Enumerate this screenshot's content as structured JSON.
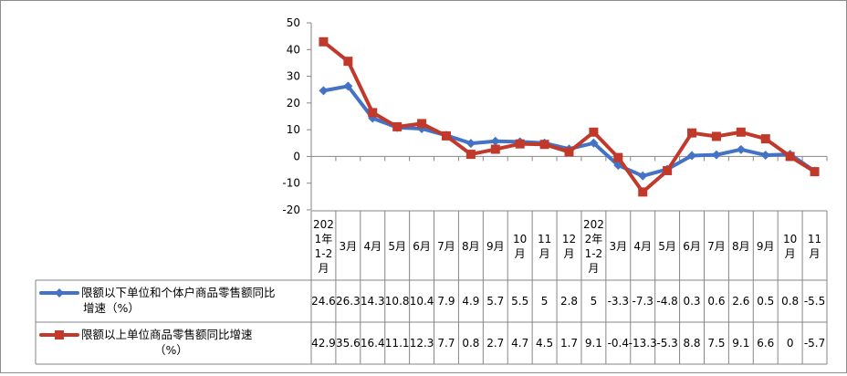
{
  "chart_data": {
    "type": "line",
    "categories": [
      "2021年1-2月",
      "3月",
      "4月",
      "5月",
      "6月",
      "7月",
      "8月",
      "9月",
      "10月",
      "11月",
      "12月",
      "2022年1-2月",
      "3月",
      "4月",
      "5月",
      "6月",
      "7月",
      "8月",
      "9月",
      "10月",
      "11月"
    ],
    "category_lines": [
      [
        "202",
        "1年",
        "1-2",
        "月"
      ],
      [
        "3月"
      ],
      [
        "4月"
      ],
      [
        "5月"
      ],
      [
        "6月"
      ],
      [
        "7月"
      ],
      [
        "8月"
      ],
      [
        "9月"
      ],
      [
        "10",
        "月"
      ],
      [
        "11",
        "月"
      ],
      [
        "12",
        "月"
      ],
      [
        "202",
        "2年",
        "1-2",
        "月"
      ],
      [
        "3月"
      ],
      [
        "4月"
      ],
      [
        "5月"
      ],
      [
        "6月"
      ],
      [
        "7月"
      ],
      [
        "8月"
      ],
      [
        "9月"
      ],
      [
        "10",
        "月"
      ],
      [
        "11",
        "月"
      ]
    ],
    "ylim": [
      -20,
      50
    ],
    "yticks": [
      -20,
      -10,
      0,
      10,
      20,
      30,
      40,
      50
    ],
    "series": [
      {
        "name": "限额以下单位和个体户商品零售额同比增速（%）",
        "name_lines": [
          "限额以下单位和个体户商品零售额同比",
          "增速（%）"
        ],
        "color": "#4472C4",
        "marker": "diamond",
        "values": [
          24.6,
          26.3,
          14.3,
          10.8,
          10.4,
          7.9,
          4.9,
          5.7,
          5.5,
          5,
          2.8,
          5,
          -3.3,
          -7.3,
          -4.8,
          0.3,
          0.6,
          2.6,
          0.5,
          0.8,
          -5.5
        ],
        "labels": [
          "24.6",
          "26.3",
          "14.3",
          "10.8",
          "10.4",
          "7.9",
          "4.9",
          "5.7",
          "5.5",
          "5",
          "2.8",
          "5",
          "-3.3",
          "-7.3",
          "-4.8",
          "0.3",
          "0.6",
          "2.6",
          "0.5",
          "0.8",
          "-5.5"
        ]
      },
      {
        "name": "限额以上单位商品零售额同比增速（%）",
        "name_lines": [
          "限额以上单位商品零售额同比增速",
          "（%）"
        ],
        "color": "#C0392B",
        "marker": "square",
        "values": [
          42.9,
          35.6,
          16.4,
          11.1,
          12.3,
          7.7,
          0.8,
          2.7,
          4.7,
          4.5,
          1.7,
          9.1,
          -0.4,
          -13.3,
          -5.3,
          8.8,
          7.5,
          9.1,
          6.6,
          0,
          -5.7
        ],
        "labels": [
          "42.9",
          "35.6",
          "16.4",
          "11.1",
          "12.3",
          "7.7",
          "0.8",
          "2.7",
          "4.7",
          "4.5",
          "1.7",
          "9.1",
          "-0.4",
          "-13.3",
          "-5.3",
          "8.8",
          "7.5",
          "9.1",
          "6.6",
          "0",
          "-5.7"
        ]
      }
    ],
    "grid": false,
    "legend": "data-table-left"
  }
}
